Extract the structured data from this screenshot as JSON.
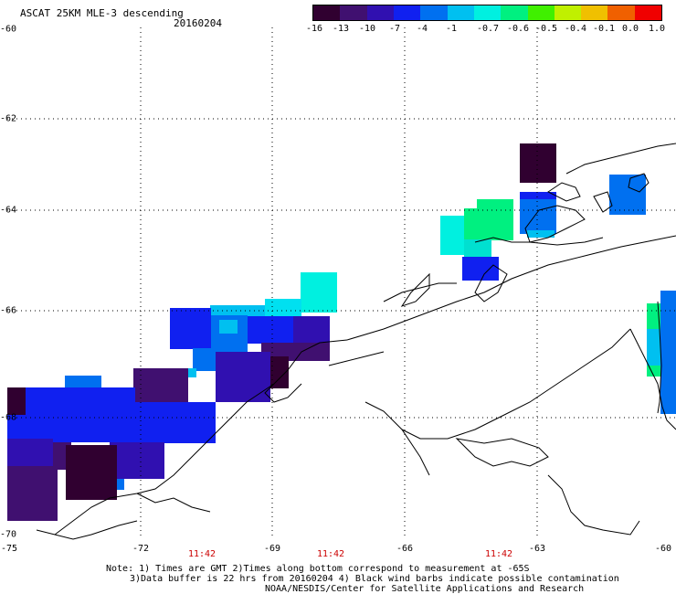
{
  "header": {
    "title": "ASCAT 25KM MLE-3 descending",
    "date": "20160204"
  },
  "colorbar": {
    "labels": [
      "-16",
      "-13",
      "-10",
      "-7",
      "-4",
      "-1",
      "-0.7",
      "-0.6",
      "-0.5",
      "-0.4",
      "-0.1",
      "0.0",
      "1.0"
    ],
    "colors": [
      "#300030",
      "#401070",
      "#3010b0",
      "#1020f0",
      "#0070f0",
      "#00c0f0",
      "#00f0e0",
      "#00f080",
      "#40f000",
      "#c0f000",
      "#f0c000",
      "#f06000",
      "#f00000"
    ]
  },
  "axes": {
    "lat_labels": [
      "-60",
      "-62",
      "-64",
      "-66",
      "-68",
      "-70"
    ],
    "lon_labels": [
      "-75",
      "-72",
      "-69",
      "-66",
      "-63",
      "-60"
    ],
    "time_labels": [
      "11:42",
      "11:42",
      "11:42"
    ]
  },
  "notes": {
    "line1": "Note: 1) Times are GMT 2)Times along bottom correspond to measurement at -65S",
    "line2": "3)Data buffer is 22 hrs from 20160204 4) Black wind barbs indicate possible contamination",
    "line3": "NOAA/NESDIS/Center for Satellite Applications and Research"
  }
}
